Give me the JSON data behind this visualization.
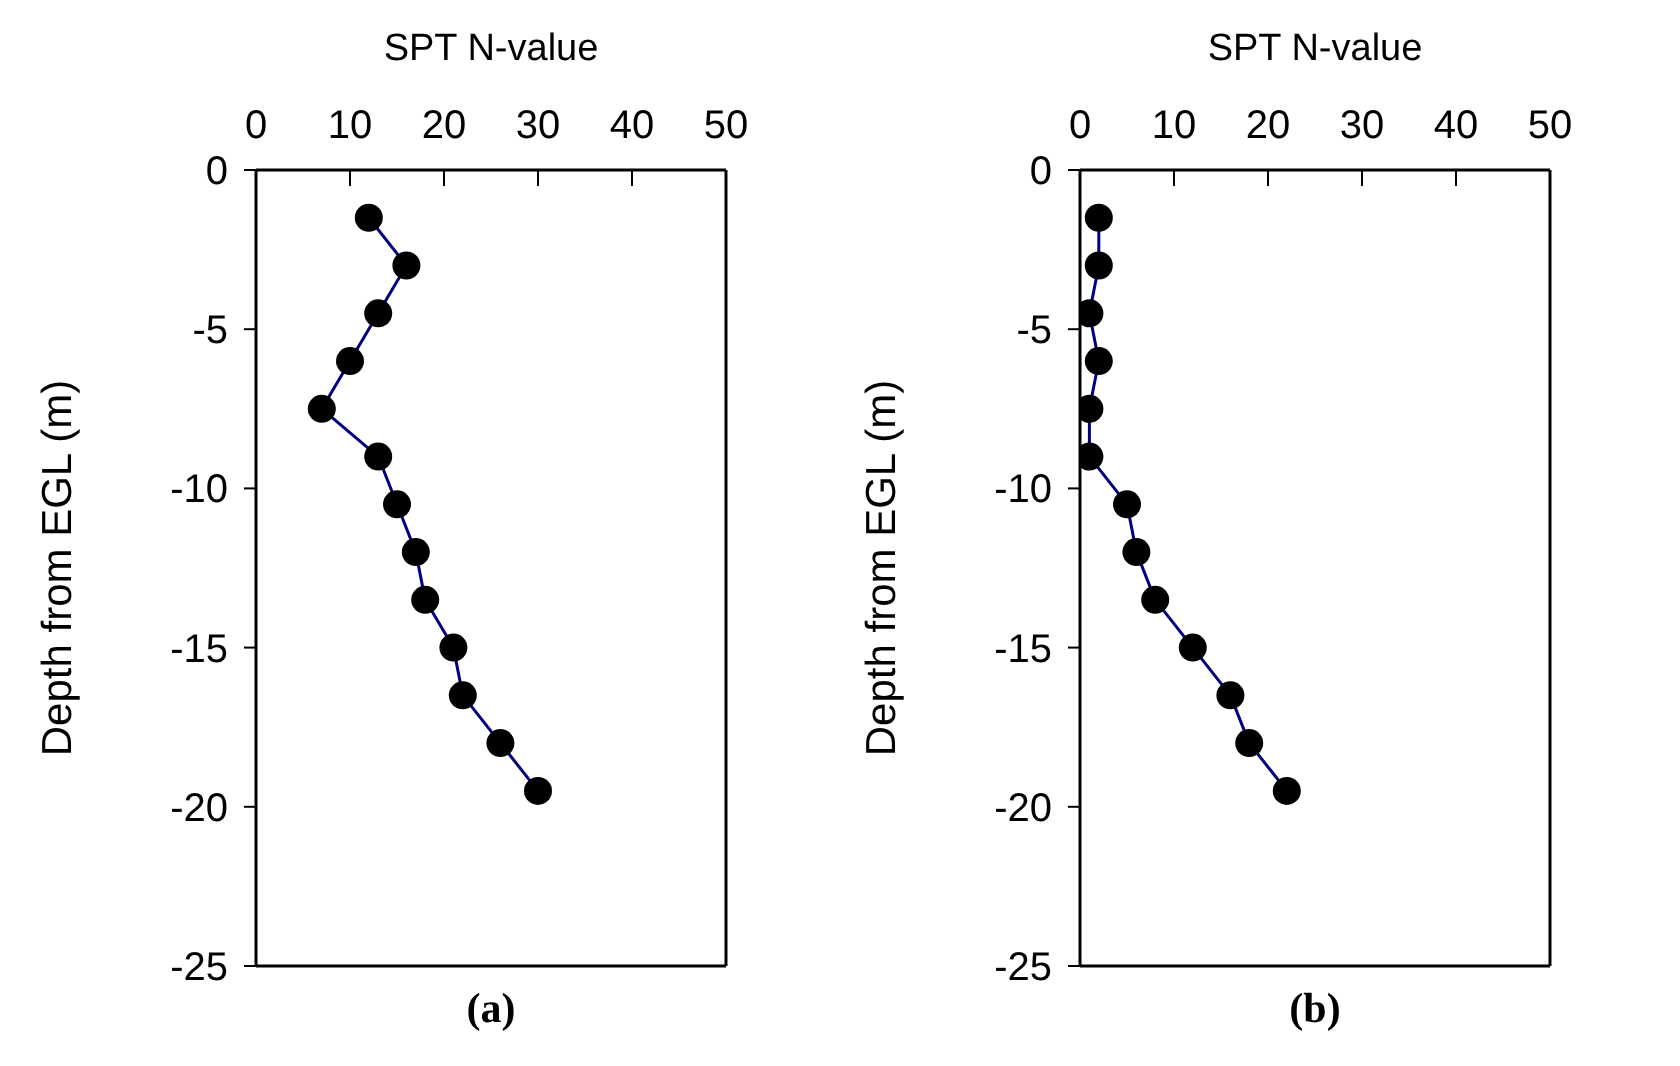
{
  "chart_data": [
    {
      "type": "line",
      "xlabel": "SPT N-value",
      "ylabel": "Depth from EGL (m)",
      "annotations": [
        "(a)"
      ],
      "marker": "circle",
      "xlim": [
        0,
        50
      ],
      "xticks": [
        0,
        10,
        20,
        30,
        40,
        50
      ],
      "ylim": [
        -25,
        0
      ],
      "yticks": [
        -25,
        -20,
        -15,
        -10,
        -5,
        0
      ],
      "series": [
        {
          "color": "#000080",
          "x": [
            12,
            16,
            13,
            10,
            7,
            13,
            15,
            17,
            18,
            21,
            22,
            26,
            30
          ],
          "values": [
            -1.5,
            -3,
            -4.5,
            -6,
            -7.5,
            -9,
            -10.5,
            -12,
            -13.5,
            -15,
            -16.5,
            -18,
            -19.5
          ]
        }
      ]
    },
    {
      "type": "line",
      "xlabel": "SPT N-value",
      "ylabel": "Depth from EGL (m)",
      "annotations": [
        "(b)"
      ],
      "marker": "circle",
      "xlim": [
        0,
        50
      ],
      "xticks": [
        0,
        10,
        20,
        30,
        40,
        50
      ],
      "ylim": [
        -25,
        0
      ],
      "yticks": [
        -25,
        -20,
        -15,
        -10,
        -5,
        0
      ],
      "series": [
        {
          "color": "#000080",
          "x": [
            2,
            2,
            1,
            2,
            1,
            1,
            5,
            6,
            8,
            12,
            16,
            18,
            22
          ],
          "values": [
            -1.5,
            -3,
            -4.5,
            -6,
            -7.5,
            -9,
            -10.5,
            -12,
            -13.5,
            -15,
            -16.5,
            -18,
            -19.5
          ]
        }
      ]
    }
  ]
}
